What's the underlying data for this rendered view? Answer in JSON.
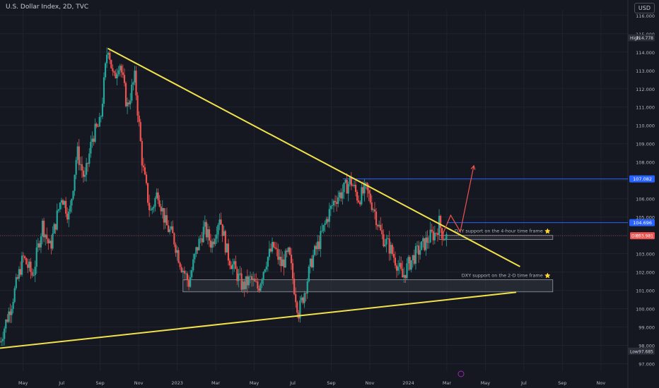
{
  "header": {
    "title": "U.S. Dollar Index, 2D, TVC",
    "currency": "USD"
  },
  "colors": {
    "background": "#151821",
    "up": "#26a69a",
    "down": "#ef5350",
    "trendline": "#f2e24a",
    "level_line": "#2962ff",
    "forecast": "#ef5350",
    "axis_text": "#b2b5be",
    "zone_fill": "#3a3d47",
    "zone_border": "#9598a1"
  },
  "chart_data": {
    "type": "candlestick",
    "x_ticks": [
      "May",
      "Jul",
      "Sep",
      "Nov",
      "2023",
      "Mar",
      "May",
      "Jul",
      "Sep",
      "Nov",
      "2024",
      "Mar",
      "May",
      "Jul",
      "Sep",
      "Nov"
    ],
    "y_ticks": [
      "116.000",
      "115.000",
      "114.000",
      "113.000",
      "112.000",
      "111.000",
      "110.000",
      "109.000",
      "108.000",
      "107.000",
      "106.000",
      "105.000",
      "104.000",
      "103.000",
      "102.000",
      "101.000",
      "100.000",
      "99.000",
      "98.000",
      "97.000"
    ],
    "ylim": [
      96.6,
      116.3
    ],
    "x_tick_index": [
      0,
      1,
      2,
      3,
      4,
      5,
      6,
      7,
      8,
      9,
      10,
      11,
      12,
      13,
      14,
      15
    ],
    "xlim": [
      -0.6,
      15.7
    ],
    "price_path": [
      [
        -0.6,
        98.2
      ],
      [
        -0.3,
        100.3
      ],
      [
        0.0,
        102.8
      ],
      [
        0.25,
        101.8
      ],
      [
        0.5,
        104.6
      ],
      [
        0.7,
        103.3
      ],
      [
        1.0,
        106.2
      ],
      [
        1.2,
        105.0
      ],
      [
        1.4,
        108.6
      ],
      [
        1.6,
        107.0
      ],
      [
        1.8,
        109.4
      ],
      [
        2.0,
        110.1
      ],
      [
        2.1,
        112.3
      ],
      [
        2.2,
        114.5
      ],
      [
        2.35,
        112.4
      ],
      [
        2.5,
        113.6
      ],
      [
        2.7,
        111.0
      ],
      [
        2.9,
        112.6
      ],
      [
        3.1,
        107.8
      ],
      [
        3.3,
        105.2
      ],
      [
        3.5,
        106.4
      ],
      [
        3.7,
        104.6
      ],
      [
        3.9,
        103.9
      ],
      [
        4.1,
        102.4
      ],
      [
        4.3,
        101.4
      ],
      [
        4.5,
        103.2
      ],
      [
        4.7,
        104.4
      ],
      [
        4.9,
        103.5
      ],
      [
        5.1,
        105.1
      ],
      [
        5.3,
        103.0
      ],
      [
        5.5,
        102.1
      ],
      [
        5.7,
        101.2
      ],
      [
        5.9,
        101.6
      ],
      [
        6.1,
        101.1
      ],
      [
        6.3,
        102.6
      ],
      [
        6.5,
        103.4
      ],
      [
        6.7,
        102.4
      ],
      [
        6.9,
        103.0
      ],
      [
        7.05,
        101.0
      ],
      [
        7.15,
        99.8
      ],
      [
        7.3,
        100.9
      ],
      [
        7.5,
        102.7
      ],
      [
        7.7,
        103.7
      ],
      [
        7.9,
        105.0
      ],
      [
        8.1,
        106.0
      ],
      [
        8.3,
        106.4
      ],
      [
        8.5,
        107.0
      ],
      [
        8.7,
        106.0
      ],
      [
        8.9,
        106.5
      ],
      [
        9.1,
        105.5
      ],
      [
        9.3,
        104.0
      ],
      [
        9.5,
        103.4
      ],
      [
        9.7,
        102.5
      ],
      [
        9.85,
        101.7
      ],
      [
        10.0,
        102.4
      ],
      [
        10.2,
        103.0
      ],
      [
        10.4,
        103.5
      ],
      [
        10.6,
        104.0
      ],
      [
        10.7,
        104.1
      ],
      [
        10.8,
        104.7
      ],
      [
        10.9,
        104.0
      ],
      [
        11.0,
        103.9
      ]
    ],
    "trendlines": [
      {
        "x1": 2.2,
        "y1": 114.2,
        "x2": 12.9,
        "y2": 102.3
      },
      {
        "x1": -0.6,
        "y1": 97.85,
        "x2": 12.8,
        "y2": 100.9
      }
    ],
    "levels": [
      {
        "price": 107.082,
        "x_start": 8.3,
        "label": "107.082"
      },
      {
        "price": 104.696,
        "x_start": 11.0,
        "label": "104.696"
      }
    ],
    "zones": [
      {
        "x1": 10.8,
        "x2": 13.75,
        "y_low": 103.78,
        "y_high": 104.0,
        "label": "DXY support on the 4-hour time frame"
      },
      {
        "x1": 4.15,
        "x2": 13.75,
        "y_low": 100.92,
        "y_high": 101.58,
        "label": "DXY support on the 2-D time frame"
      }
    ],
    "forecast_path": [
      [
        10.9,
        104.1
      ],
      [
        11.1,
        105.1
      ],
      [
        11.35,
        104.2
      ],
      [
        11.7,
        107.8
      ]
    ],
    "current_price": {
      "symbol": "DXY",
      "value": "103.981",
      "price": 103.981
    },
    "high": {
      "label": "High",
      "value": "114.778",
      "price": 114.778
    },
    "low": {
      "label": "Low",
      "value": "97.685",
      "price": 97.685
    }
  }
}
